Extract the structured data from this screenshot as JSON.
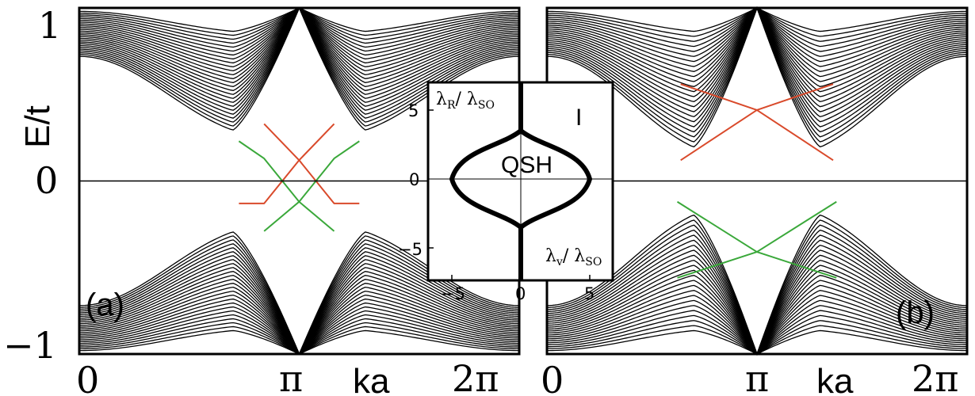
{
  "chart_data": [
    {
      "type": "line",
      "panel_label": "(a)",
      "ylabel": "E/t",
      "xlabel": "ka",
      "xlim": [
        0,
        6.2832
      ],
      "ylim": [
        -1,
        1
      ],
      "xticks": [
        "0",
        "π",
        "2π"
      ],
      "yticks": [
        "1",
        "0",
        "−1"
      ],
      "bulk_bands": {
        "count_per_side": 26,
        "gap_min": 0.24,
        "edge": 1.0
      },
      "edge_states": [
        {
          "color": "#d94a2b",
          "points": [
            [
              2.64,
              0.33
            ],
            [
              3.14,
              0.12
            ],
            [
              3.64,
              -0.13
            ],
            [
              4.0,
              -0.13
            ]
          ]
        },
        {
          "color": "#d94a2b",
          "points": [
            [
              2.28,
              -0.13
            ],
            [
              2.64,
              -0.13
            ],
            [
              3.14,
              0.12
            ],
            [
              3.64,
              0.33
            ]
          ]
        },
        {
          "color": "#3aa83a",
          "points": [
            [
              2.28,
              0.23
            ],
            [
              2.64,
              0.13
            ],
            [
              3.14,
              -0.12
            ],
            [
              3.64,
              -0.29
            ]
          ]
        },
        {
          "color": "#3aa83a",
          "points": [
            [
              2.64,
              -0.29
            ],
            [
              3.14,
              -0.12
            ],
            [
              3.64,
              0.13
            ],
            [
              4.0,
              0.23
            ]
          ]
        }
      ]
    },
    {
      "type": "line",
      "panel_label": "(b)",
      "xlabel": "ka",
      "xlim": [
        0,
        6.2832
      ],
      "ylim": [
        -1,
        1
      ],
      "xticks": [
        "0",
        "π",
        "2π"
      ],
      "bulk_bands": {
        "count_per_side": 24,
        "gap_min": 0.13,
        "edge": 1.0
      },
      "edge_states": [
        {
          "color": "#d94a2b",
          "points": [
            [
              2.0,
              0.56
            ],
            [
              3.14,
              0.41
            ],
            [
              4.28,
              0.12
            ]
          ]
        },
        {
          "color": "#d94a2b",
          "points": [
            [
              2.0,
              0.12
            ],
            [
              3.14,
              0.41
            ],
            [
              4.28,
              0.56
            ]
          ]
        },
        {
          "color": "#3aa83a",
          "points": [
            [
              1.95,
              -0.12
            ],
            [
              3.14,
              -0.41
            ],
            [
              4.33,
              -0.56
            ]
          ]
        },
        {
          "color": "#3aa83a",
          "points": [
            [
              1.95,
              -0.56
            ],
            [
              3.14,
              -0.41
            ],
            [
              4.33,
              -0.12
            ]
          ]
        }
      ]
    },
    {
      "type": "line",
      "inset": true,
      "xlabel": "λv/ λSO",
      "ylabel": "λR/ λSO",
      "xlim": [
        -7,
        7
      ],
      "ylim": [
        -7,
        7
      ],
      "xticks": [
        -5,
        0,
        5
      ],
      "yticks": [
        5,
        0,
        -5
      ],
      "regions": [
        "QSH",
        "I"
      ],
      "phase_boundary": {
        "lambda_v_max": 5.2,
        "lambda_r_max": 3.5
      }
    }
  ],
  "labels": {
    "panel_a": "(a)",
    "panel_b": "(b)",
    "ylabel": "E/t",
    "xlabel_a": "ka",
    "xlabel_b": "ka",
    "ytick_top": "1",
    "ytick_mid": "0",
    "ytick_bot": "−1",
    "xtick_a_0": "0",
    "xtick_a_pi": "π",
    "xtick_a_2pi": "2π",
    "xtick_b_0": "0",
    "xtick_b_pi": "π",
    "xtick_b_2pi": "2π",
    "inset_qsh": "QSH",
    "inset_i": "I",
    "inset_ylabel_num": "λ",
    "inset_ylabel_num_sub": "R",
    "inset_ylabel_den": "/ λ",
    "inset_ylabel_den_sub": "SO",
    "inset_xlabel_num": "λ",
    "inset_xlabel_num_sub": "v",
    "inset_xlabel_den": "/ λ",
    "inset_xlabel_den_sub": "SO",
    "inset_xtick_m5": "−5",
    "inset_xtick_0": "0",
    "inset_xtick_5": "5",
    "inset_ytick_5": "5",
    "inset_ytick_0": "0",
    "inset_ytick_m5": "−5"
  }
}
